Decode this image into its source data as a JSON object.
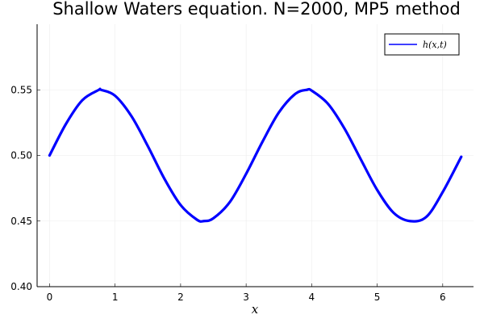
{
  "chart_data": {
    "type": "line",
    "title": "Shallow Waters equation. N=2000, MP5 method",
    "xlabel": "x",
    "ylabel": "",
    "xlim": [
      -0.19,
      6.47
    ],
    "ylim": [
      0.4,
      0.6
    ],
    "x_ticks": [
      0,
      1,
      2,
      3,
      4,
      5,
      6
    ],
    "y_ticks": [
      0.4,
      0.45,
      0.5,
      0.55
    ],
    "y_tick_labels": [
      "0.40",
      "0.45",
      "0.50",
      "0.55"
    ],
    "grid": true,
    "legend_position": "top-right",
    "series": [
      {
        "name": "h(x,t)",
        "color": "#0000ff",
        "x": [
          0.0,
          0.25,
          0.5,
          0.75,
          0.785,
          1.0,
          1.25,
          1.5,
          1.75,
          2.0,
          2.25,
          2.356,
          2.5,
          2.75,
          3.0,
          3.25,
          3.5,
          3.75,
          3.927,
          4.0,
          4.25,
          4.5,
          4.75,
          5.0,
          5.25,
          5.498,
          5.75,
          6.0,
          6.283
        ],
        "y": [
          0.5,
          0.524,
          0.5421,
          0.5499,
          0.55,
          0.5455,
          0.5299,
          0.5071,
          0.4825,
          0.4622,
          0.451,
          0.45,
          0.4521,
          0.4644,
          0.486,
          0.5105,
          0.5328,
          0.5469,
          0.55,
          0.5494,
          0.5393,
          0.5206,
          0.497,
          0.4737,
          0.4563,
          0.45,
          0.4532,
          0.4721,
          0.499
        ]
      }
    ]
  }
}
